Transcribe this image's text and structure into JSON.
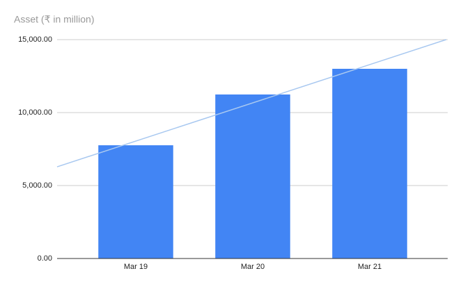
{
  "chart_data": {
    "type": "bar",
    "title": "Asset (₹ in million)",
    "categories": [
      "Mar 19",
      "Mar 20",
      "Mar 21"
    ],
    "values": [
      7760,
      11240,
      13000
    ],
    "color": "#4285f4",
    "trendline": true,
    "trendline_color": "#a8c8f0",
    "ylim": [
      0,
      15000
    ],
    "yticks": [
      {
        "value": 0,
        "label": "0.00"
      },
      {
        "value": 5000,
        "label": "5,000.00"
      },
      {
        "value": 10000,
        "label": "10,000.00"
      },
      {
        "value": 15000,
        "label": "15,000.00"
      }
    ],
    "grid": true
  }
}
